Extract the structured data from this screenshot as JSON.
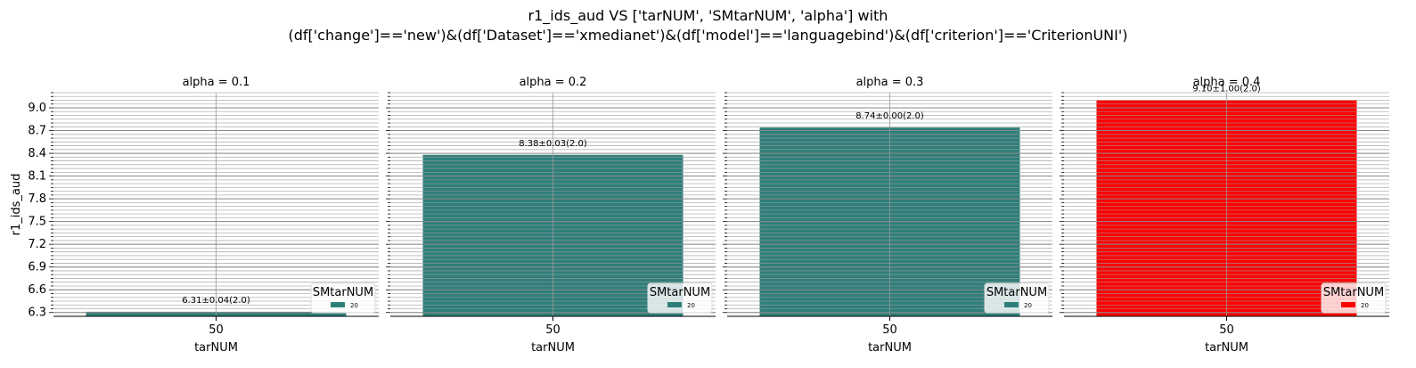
{
  "figure": {
    "title_line1": "r1_ids_aud VS ['tarNUM', 'SMtarNUM', 'alpha'] with",
    "title_line2": "(df['change']=='new')&(df['Dataset']=='xmedianet')&(df['model']=='languagebind')&(df['criterion']=='CriterionUNI')"
  },
  "chart_data": [
    {
      "type": "bar",
      "title": "alpha = 0.1",
      "xlabel": "tarNUM",
      "ylabel": "r1_ids_aud",
      "categories": [
        "50"
      ],
      "values": [
        6.31
      ],
      "data_labels": [
        "6.31±0.04(2.0)"
      ],
      "bar_color": "#2e7f7a",
      "ylim": [
        6.25,
        9.2
      ],
      "yticks": [
        6.3,
        6.6,
        6.9,
        7.2,
        7.5,
        7.8,
        8.1,
        8.4,
        8.7,
        9.0
      ],
      "legend": {
        "title": "SMtarNUM",
        "entries": [
          "20"
        ],
        "placement": "lower right"
      },
      "grid": true
    },
    {
      "type": "bar",
      "title": "alpha = 0.2",
      "xlabel": "tarNUM",
      "categories": [
        "50"
      ],
      "values": [
        8.38
      ],
      "data_labels": [
        "8.38±0.03(2.0)"
      ],
      "bar_color": "#2e7f7a",
      "ylim": [
        6.25,
        9.2
      ],
      "legend": {
        "title": "SMtarNUM",
        "entries": [
          "20"
        ],
        "placement": "lower right"
      },
      "grid": true
    },
    {
      "type": "bar",
      "title": "alpha = 0.3",
      "xlabel": "tarNUM",
      "categories": [
        "50"
      ],
      "values": [
        8.74
      ],
      "data_labels": [
        "8.74±0.00(2.0)"
      ],
      "bar_color": "#2e7f7a",
      "ylim": [
        6.25,
        9.2
      ],
      "legend": {
        "title": "SMtarNUM",
        "entries": [
          "20"
        ],
        "placement": "lower right"
      },
      "grid": true
    },
    {
      "type": "bar",
      "title": "alpha = 0.4",
      "xlabel": "tarNUM",
      "categories": [
        "50"
      ],
      "values": [
        9.1
      ],
      "data_labels": [
        "9.10±1.00(2.0)"
      ],
      "bar_color": "#ff0000",
      "ylim": [
        6.25,
        9.2
      ],
      "legend": {
        "title": "SMtarNUM",
        "entries": [
          "20"
        ],
        "placement": "lower right"
      },
      "grid": true
    }
  ]
}
